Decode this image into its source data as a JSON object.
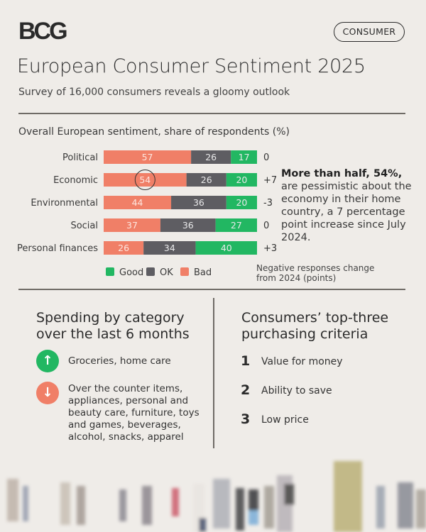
{
  "header": {
    "logo": "BCG",
    "tag": "CONSUMER",
    "title": "European Consumer Sentiment 2025",
    "subtitle": "Survey of 16,000 consumers reveals a gloomy outlook"
  },
  "colors": {
    "good": "#22b762",
    "ok": "#5e5d62",
    "bad": "#f07f67",
    "highlight_ring": "#333333"
  },
  "chart_data": {
    "type": "bar",
    "orientation": "horizontal-stacked-100",
    "title": "Overall European sentiment, share of respondents (%)",
    "categories": [
      "Political",
      "Economic",
      "Environmental",
      "Social",
      "Personal finances"
    ],
    "series": [
      {
        "name": "Bad",
        "values": [
          57,
          54,
          44,
          37,
          26
        ]
      },
      {
        "name": "OK",
        "values": [
          26,
          26,
          36,
          36,
          34
        ]
      },
      {
        "name": "Good",
        "values": [
          17,
          20,
          20,
          27,
          40
        ]
      }
    ],
    "change_from_2024": [
      "0",
      "+7",
      "-3",
      "0",
      "+3"
    ],
    "change_label": "Negative responses change from 2024 (points)",
    "legend": [
      "Good",
      "OK",
      "Bad"
    ],
    "legend_position": "bottom",
    "highlight": {
      "category": "Economic",
      "series": "Bad"
    },
    "xlim": [
      0,
      100
    ]
  },
  "callout": {
    "bold": "More than half, 54%,",
    "text": "are pessimistic about the economy in their home country, a 7 percentage point increase since July 2024."
  },
  "spending": {
    "title": "Spending by category over the last 6 months",
    "up_icon": "arrow-up-icon",
    "up": "Groceries, home care",
    "down_icon": "arrow-down-icon",
    "down": "Over the counter items, appliances, personal and beauty care, furniture, toys and games, beverages, alcohol, snacks, apparel"
  },
  "criteria": {
    "title": "Consumers’ top-three purchasing criteria",
    "items": [
      {
        "rank": "1",
        "label": "Value for money"
      },
      {
        "rank": "2",
        "label": "Ability to save"
      },
      {
        "rank": "3",
        "label": "Low price"
      }
    ]
  }
}
